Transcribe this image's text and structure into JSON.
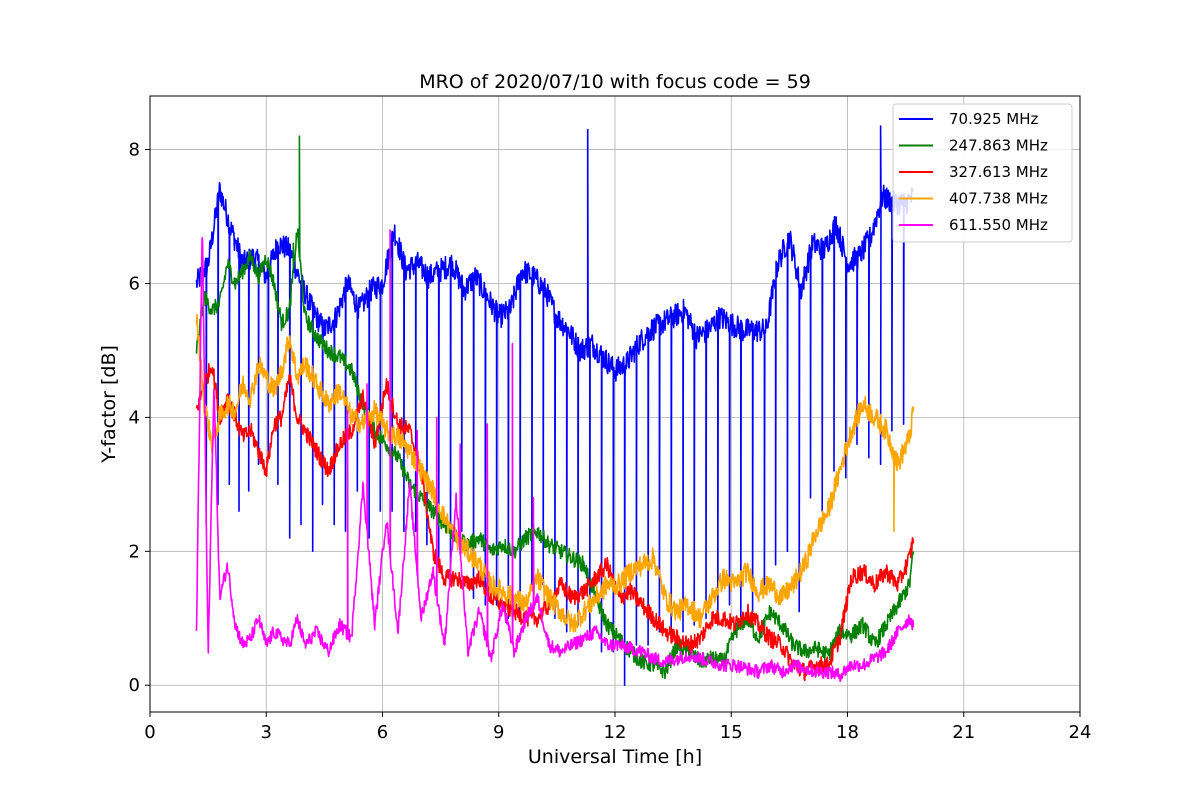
{
  "chart_data": {
    "type": "line",
    "title": "MRO of 2020/07/10 with focus code = 59",
    "xlabel": "Universal Time [h]",
    "ylabel": "Y-factor [dB]",
    "xlim": [
      0,
      24
    ],
    "ylim": [
      -0.4,
      8.8
    ],
    "xticks": [
      0,
      3,
      6,
      9,
      12,
      15,
      18,
      21,
      24
    ],
    "yticks": [
      0,
      2,
      4,
      6,
      8
    ],
    "grid": true,
    "legend_position": "top-right",
    "series": [
      {
        "name": "  70.925 MHz",
        "color": "#0000ff",
        "x": [
          1.2,
          1.5,
          1.8,
          2.1,
          2.4,
          2.7,
          3.0,
          3.3,
          3.6,
          3.9,
          4.2,
          4.5,
          4.8,
          5.1,
          5.4,
          5.7,
          6.0,
          6.3,
          6.6,
          6.9,
          7.2,
          7.5,
          7.8,
          8.1,
          8.4,
          8.7,
          9.0,
          9.3,
          9.6,
          9.9,
          10.2,
          10.5,
          10.8,
          11.1,
          11.4,
          11.7,
          12.0,
          12.3,
          12.6,
          12.9,
          13.2,
          13.5,
          13.8,
          14.1,
          14.4,
          14.7,
          15.0,
          15.3,
          15.6,
          15.9,
          16.2,
          16.5,
          16.8,
          17.1,
          17.4,
          17.7,
          18.0,
          18.3,
          18.6,
          18.9,
          19.2,
          19.5,
          19.7
        ],
        "y": [
          6.0,
          6.3,
          7.4,
          6.8,
          6.3,
          6.4,
          6.1,
          6.6,
          6.5,
          6.0,
          5.6,
          5.3,
          5.5,
          6.0,
          5.6,
          5.9,
          6.0,
          6.8,
          6.2,
          6.3,
          6.1,
          6.2,
          6.3,
          5.9,
          6.1,
          5.8,
          5.5,
          5.6,
          6.2,
          6.1,
          5.9,
          5.5,
          5.3,
          5.0,
          5.1,
          4.9,
          4.7,
          4.8,
          5.1,
          5.3,
          5.4,
          5.5,
          5.6,
          5.2,
          5.3,
          5.5,
          5.4,
          5.3,
          5.3,
          5.3,
          6.3,
          6.7,
          5.9,
          6.6,
          6.5,
          6.9,
          6.3,
          6.4,
          6.7,
          7.3,
          7.2,
          7.2,
          7.3
        ],
        "dips": [
          1.45,
          1.75,
          2.05,
          2.3,
          2.55,
          2.8,
          3.05,
          3.3,
          3.6,
          3.9,
          4.2,
          4.45,
          4.75,
          5.05,
          5.35,
          5.65,
          5.95,
          6.25,
          6.55,
          6.85,
          7.15,
          7.45,
          7.75,
          8.05,
          8.35,
          8.65,
          8.95,
          9.25,
          9.55,
          9.85,
          10.15,
          10.45,
          10.75,
          11.05,
          11.35,
          11.65,
          11.95,
          12.25,
          12.55,
          12.85,
          13.15,
          13.45,
          13.75,
          14.05,
          14.35,
          14.65,
          14.95,
          15.25,
          15.55,
          15.85,
          16.15,
          16.45,
          16.75,
          17.05,
          17.35,
          17.65,
          17.95,
          18.25,
          18.55,
          18.85,
          19.15,
          19.45
        ],
        "dip_depth": [
          2.4,
          2.7,
          3.0,
          2.6,
          2.9,
          3.3,
          3.5,
          3.0,
          2.2,
          2.4,
          2.0,
          2.7,
          2.4,
          2.3,
          2.9,
          2.2,
          2.6,
          2.6,
          2.3,
          2.3,
          2.1,
          1.8,
          1.5,
          2.3,
          1.3,
          1.2,
          1.2,
          1.0,
          1.1,
          1.5,
          1.5,
          1.0,
          0.8,
          0.9,
          0.8,
          0.5,
          0.5,
          0.0,
          0.6,
          0.6,
          0.8,
          0.7,
          0.8,
          0.9,
          1.0,
          0.9,
          1.2,
          1.0,
          1.1,
          1.5,
          1.8,
          2.0,
          1.1,
          2.8,
          2.6,
          3.2,
          3.1,
          3.6,
          3.4,
          3.3,
          3.8,
          3.9
        ],
        "spikes": [
          [
            11.3,
            8.3
          ],
          [
            18.85,
            8.35
          ]
        ]
      },
      {
        "name": "247.863 MHz",
        "color": "#008000",
        "x": [
          1.2,
          1.4,
          1.6,
          1.8,
          2.0,
          2.2,
          2.4,
          2.6,
          2.8,
          3.0,
          3.2,
          3.4,
          3.6,
          3.8,
          4.0,
          4.3,
          4.6,
          4.9,
          5.2,
          5.5,
          5.8,
          6.1,
          6.4,
          6.7,
          7.0,
          7.3,
          7.6,
          7.9,
          8.2,
          8.5,
          8.8,
          9.1,
          9.4,
          9.7,
          10.0,
          10.3,
          10.6,
          10.9,
          11.2,
          11.5,
          11.8,
          12.1,
          12.4,
          12.7,
          13.0,
          13.3,
          13.6,
          13.9,
          14.2,
          14.5,
          14.8,
          15.1,
          15.4,
          15.7,
          16.0,
          16.3,
          16.6,
          16.9,
          17.2,
          17.5,
          17.8,
          18.1,
          18.4,
          18.7,
          19.0,
          19.3,
          19.6,
          19.7
        ],
        "y": [
          5.0,
          5.8,
          5.6,
          5.7,
          6.3,
          6.0,
          6.2,
          6.4,
          6.1,
          6.4,
          6.0,
          5.4,
          5.6,
          6.8,
          5.5,
          5.2,
          5.0,
          4.9,
          4.7,
          4.2,
          3.8,
          3.6,
          3.4,
          3.0,
          2.8,
          2.6,
          2.4,
          2.2,
          2.1,
          2.2,
          2.0,
          2.1,
          2.0,
          2.2,
          2.3,
          2.1,
          2.0,
          1.9,
          1.8,
          1.3,
          0.9,
          0.7,
          0.5,
          0.35,
          0.3,
          0.2,
          0.6,
          0.5,
          0.35,
          0.4,
          0.35,
          0.8,
          1.0,
          0.7,
          1.1,
          0.9,
          0.6,
          0.5,
          0.55,
          0.45,
          0.8,
          0.75,
          0.9,
          0.6,
          0.9,
          1.2,
          1.5,
          2.0
        ],
        "spikes": [
          [
            3.85,
            8.2
          ],
          [
            3.7,
            6.6
          ]
        ]
      },
      {
        "name": "327.613 MHz",
        "color": "#ff0000",
        "x": [
          1.2,
          1.4,
          1.6,
          1.8,
          2.0,
          2.2,
          2.4,
          2.6,
          2.8,
          3.0,
          3.2,
          3.4,
          3.6,
          3.8,
          4.0,
          4.3,
          4.6,
          4.9,
          5.2,
          5.5,
          5.8,
          6.1,
          6.4,
          6.7,
          7.0,
          7.3,
          7.6,
          7.9,
          8.2,
          8.5,
          8.8,
          9.1,
          9.4,
          9.7,
          10.0,
          10.3,
          10.6,
          10.9,
          11.2,
          11.5,
          11.8,
          12.1,
          12.4,
          12.7,
          13.0,
          13.3,
          13.6,
          13.9,
          14.2,
          14.5,
          14.8,
          15.1,
          15.4,
          15.7,
          16.0,
          16.3,
          16.6,
          16.9,
          17.2,
          17.5,
          17.8,
          18.1,
          18.4,
          18.7,
          19.0,
          19.3,
          19.6,
          19.7
        ],
        "y": [
          4.1,
          4.5,
          4.8,
          4.0,
          4.3,
          4.0,
          3.7,
          3.8,
          3.5,
          3.2,
          3.9,
          4.0,
          4.6,
          4.0,
          3.8,
          3.5,
          3.2,
          3.6,
          3.8,
          4.3,
          3.6,
          4.5,
          3.9,
          3.8,
          3.2,
          2.0,
          1.6,
          1.6,
          1.5,
          1.6,
          1.3,
          1.2,
          1.1,
          1.0,
          1.0,
          1.2,
          1.5,
          1.3,
          1.4,
          1.6,
          1.8,
          1.3,
          1.4,
          1.2,
          1.0,
          0.8,
          0.7,
          0.6,
          0.7,
          1.0,
          1.0,
          0.9,
          1.1,
          0.9,
          0.7,
          0.6,
          0.3,
          0.2,
          0.3,
          0.3,
          0.7,
          1.6,
          1.7,
          1.5,
          1.7,
          1.5,
          1.9,
          2.2
        ]
      },
      {
        "name": "407.738 MHz",
        "color": "#ffa500",
        "x": [
          1.2,
          1.4,
          1.6,
          1.8,
          2.0,
          2.2,
          2.4,
          2.6,
          2.8,
          3.0,
          3.2,
          3.4,
          3.6,
          3.8,
          4.0,
          4.3,
          4.6,
          4.9,
          5.2,
          5.5,
          5.8,
          6.1,
          6.4,
          6.7,
          7.0,
          7.3,
          7.6,
          7.9,
          8.2,
          8.5,
          8.8,
          9.1,
          9.4,
          9.7,
          10.0,
          10.3,
          10.6,
          10.9,
          11.2,
          11.5,
          11.8,
          12.1,
          12.4,
          12.7,
          13.0,
          13.3,
          13.6,
          13.9,
          14.2,
          14.5,
          14.8,
          15.1,
          15.4,
          15.7,
          16.0,
          16.3,
          16.6,
          16.9,
          17.2,
          17.5,
          17.8,
          18.1,
          18.4,
          18.7,
          19.0,
          19.3,
          19.6,
          19.7
        ],
        "y": [
          5.5,
          4.2,
          3.6,
          4.0,
          4.2,
          4.1,
          4.5,
          4.3,
          4.8,
          4.6,
          4.4,
          4.7,
          5.2,
          4.6,
          4.8,
          4.5,
          4.2,
          4.4,
          4.0,
          3.9,
          4.1,
          3.8,
          3.7,
          3.5,
          3.2,
          2.9,
          2.5,
          2.2,
          2.0,
          1.8,
          1.5,
          1.4,
          1.3,
          1.2,
          1.6,
          1.3,
          1.1,
          0.9,
          1.1,
          1.3,
          1.5,
          1.5,
          1.7,
          1.8,
          1.9,
          1.3,
          1.1,
          1.2,
          1.0,
          1.3,
          1.6,
          1.5,
          1.7,
          1.4,
          1.5,
          1.3,
          1.5,
          1.8,
          2.3,
          2.6,
          3.2,
          3.8,
          4.2,
          4.0,
          3.8,
          3.3,
          3.7,
          4.1
        ],
        "spikes": [
          [
            19.2,
            2.3
          ]
        ]
      },
      {
        "name": "611.550 MHz",
        "color": "#ff00ff",
        "x": [
          1.2,
          1.35,
          1.5,
          1.65,
          1.8,
          2.0,
          2.2,
          2.4,
          2.6,
          2.8,
          3.0,
          3.2,
          3.4,
          3.6,
          3.8,
          4.0,
          4.3,
          4.6,
          4.9,
          5.2,
          5.5,
          5.8,
          6.1,
          6.4,
          6.7,
          7.0,
          7.3,
          7.6,
          7.9,
          8.2,
          8.5,
          8.8,
          9.1,
          9.4,
          9.7,
          10.0,
          10.3,
          10.6,
          10.9,
          11.2,
          11.5,
          11.8,
          12.1,
          12.4,
          12.7,
          13.0,
          13.3,
          13.6,
          13.9,
          14.2,
          14.5,
          14.8,
          15.1,
          15.4,
          15.7,
          16.0,
          16.3,
          16.6,
          16.9,
          17.2,
          17.5,
          17.8,
          18.1,
          18.4,
          18.7,
          19.0,
          19.3,
          19.6,
          19.7
        ],
        "y": [
          0.8,
          6.9,
          0.4,
          4.5,
          1.3,
          1.8,
          0.9,
          0.6,
          0.7,
          1.0,
          0.6,
          0.8,
          0.7,
          0.6,
          1.0,
          0.6,
          0.8,
          0.5,
          0.9,
          0.7,
          3.0,
          0.9,
          2.5,
          0.8,
          3.0,
          1.0,
          1.7,
          0.6,
          2.8,
          0.5,
          1.1,
          0.4,
          1.2,
          0.5,
          1.0,
          1.3,
          0.6,
          0.5,
          0.6,
          0.7,
          0.8,
          0.6,
          0.6,
          0.55,
          0.5,
          0.4,
          0.35,
          0.4,
          0.45,
          0.4,
          0.35,
          0.3,
          0.3,
          0.25,
          0.2,
          0.3,
          0.2,
          0.3,
          0.25,
          0.2,
          0.2,
          0.15,
          0.3,
          0.3,
          0.4,
          0.5,
          0.8,
          1.0,
          0.9
        ],
        "spikes": [
          [
            5.1,
            4.1
          ],
          [
            5.6,
            4.5
          ],
          [
            6.2,
            6.8
          ],
          [
            6.9,
            3.8
          ],
          [
            7.4,
            4.0
          ],
          [
            8.0,
            3.6
          ],
          [
            8.7,
            3.9
          ],
          [
            9.35,
            5.1
          ],
          [
            9.9,
            2.8
          ]
        ]
      }
    ]
  }
}
